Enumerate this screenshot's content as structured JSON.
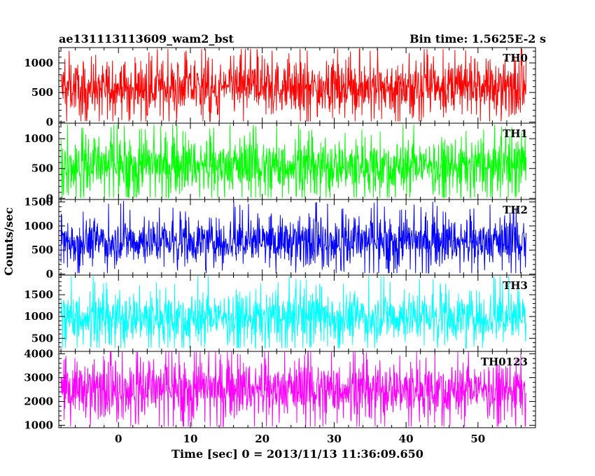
{
  "chart_data": {
    "type": "line",
    "title_left": "ae131113113609_wam2_bst",
    "title_right": "Bin time: 1.5625E-2 s",
    "xlabel": "Time [sec] 0 = 2013/11/13 11:36:09.650",
    "ylabel": "Counts/sec",
    "xlim": [
      -8.3,
      58.0
    ],
    "data_x_range": [
      -8.0,
      56.7
    ],
    "x_ticks": [
      0,
      10,
      20,
      30,
      40,
      50
    ],
    "x_tick_labels": [
      "0",
      "10",
      "20",
      "30",
      "40",
      "50"
    ],
    "panels": [
      {
        "name": "TH0",
        "color": "#ff0000",
        "ylim": [
          -20,
          1260
        ],
        "y_ticks": [
          0,
          500,
          1000
        ],
        "y_tick_labels": [
          "0",
          "500",
          "1000"
        ],
        "y_minor_step": 100,
        "mean": 590,
        "spread": 390,
        "min": 10,
        "max": 1240
      },
      {
        "name": "TH1",
        "color": "#00ff00",
        "ylim": [
          -20,
          1260
        ],
        "y_ticks": [
          0,
          500,
          1000
        ],
        "y_tick_labels": [
          "0",
          "500",
          "1000"
        ],
        "y_minor_step": 100,
        "mean": 560,
        "spread": 390,
        "min": 10,
        "max": 1240
      },
      {
        "name": "TH2",
        "color": "#0000ff",
        "ylim": [
          -20,
          1550
        ],
        "y_ticks": [
          0,
          500,
          1000,
          1500
        ],
        "y_tick_labels": [
          "0",
          "500",
          "1000",
          "1500"
        ],
        "y_minor_step": 100,
        "mean": 690,
        "spread": 420,
        "min": 20,
        "max": 1540
      },
      {
        "name": "TH3",
        "color": "#00ffff",
        "ylim": [
          200,
          1950
        ],
        "y_ticks": [
          500,
          1000,
          1500
        ],
        "y_tick_labels": [
          "500",
          "1000",
          "1500"
        ],
        "y_minor_step": 100,
        "mean": 1000,
        "spread": 520,
        "min": 280,
        "max": 1930
      },
      {
        "name": "TH0123",
        "color": "#ff00ff",
        "ylim": [
          900,
          4100
        ],
        "y_ticks": [
          1000,
          2000,
          3000,
          4000
        ],
        "y_tick_labels": [
          "1000",
          "2000",
          "3000",
          "4000"
        ],
        "y_minor_step": 200,
        "mean": 2550,
        "spread": 1000,
        "min": 950,
        "max": 4080
      }
    ]
  }
}
